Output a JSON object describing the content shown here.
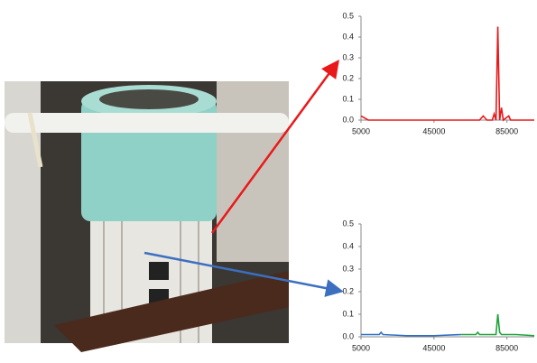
{
  "chart_data": [
    {
      "type": "line",
      "xlim": [
        5000,
        100000
      ],
      "xticks": [
        5000,
        45000,
        85000
      ],
      "ylim": [
        0,
        0.5
      ],
      "yticks": [
        {
          "value": 0,
          "label": "0.0"
        },
        0.1,
        0.2,
        0.3,
        0.4,
        0.5
      ],
      "series": [
        {
          "color": "#e8191b",
          "x": [
            5000,
            7000,
            9000,
            20000,
            40000,
            60000,
            70000,
            72000,
            74000,
            77000,
            78000,
            79000,
            80000,
            81000,
            82000,
            83000,
            86000,
            87000,
            90000,
            100000
          ],
          "values": [
            0.02,
            0.01,
            0,
            0,
            0,
            0,
            0,
            0.02,
            0,
            0,
            0.03,
            0,
            0.45,
            0,
            0.06,
            0,
            0.02,
            0,
            0,
            0
          ]
        }
      ]
    },
    {
      "type": "line",
      "xlim": [
        5000,
        100000
      ],
      "xticks": [
        5000,
        45000,
        85000
      ],
      "ylim": [
        0,
        0.5
      ],
      "yticks": [
        {
          "value": 0,
          "label": "0.0"
        },
        0.1,
        0.2,
        0.3,
        0.4,
        0.5
      ],
      "series": [
        {
          "color": "#2e6fc0",
          "x": [
            5000,
            10000,
            15000,
            16000,
            17000,
            30000,
            45000,
            60000
          ],
          "values": [
            0.01,
            0.01,
            0.01,
            0.02,
            0.01,
            0.005,
            0.005,
            0.01
          ]
        },
        {
          "color": "#1fa33a",
          "x": [
            60000,
            68000,
            69000,
            70000,
            79000,
            80000,
            81000,
            82000,
            90000,
            100000
          ],
          "values": [
            0.01,
            0.01,
            0.02,
            0.01,
            0.01,
            0.1,
            0.02,
            0.01,
            0.01,
            0.005
          ]
        }
      ]
    }
  ]
}
